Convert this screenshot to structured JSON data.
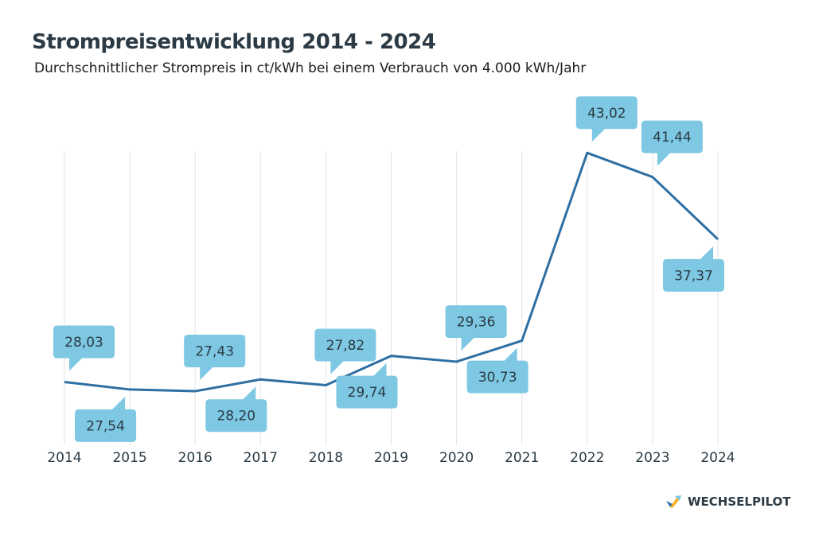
{
  "title": "Strompreisentwicklung 2014 - 2024",
  "subtitle": "Durchschnittlicher Strompreis in ct/kWh bei einem Verbrauch von 4.000 kWh/Jahr",
  "logo": {
    "text": "WECHSELPILOT"
  },
  "colors": {
    "line": "#2e6fa3",
    "label_bubble": "#7ec8e3",
    "text": "#2b3a44",
    "grid": "#e3e3e3"
  },
  "chart_data": {
    "type": "line",
    "title": "Strompreisentwicklung 2014 - 2024",
    "subtitle": "Durchschnittlicher Strompreis in ct/kWh bei einem Verbrauch von 4.000 kWh/Jahr",
    "categories": [
      "2014",
      "2015",
      "2016",
      "2017",
      "2018",
      "2019",
      "2020",
      "2021",
      "2022",
      "2023",
      "2024"
    ],
    "values": [
      28.03,
      27.54,
      27.43,
      28.2,
      27.82,
      29.74,
      29.36,
      30.73,
      43.02,
      41.44,
      37.37
    ],
    "labels": [
      "28,03",
      "27,54",
      "27,43",
      "28,20",
      "27,82",
      "29,74",
      "29,36",
      "30,73",
      "43,02",
      "41,44",
      "37,37"
    ],
    "label_position": [
      "above",
      "below",
      "above",
      "below",
      "above",
      "below",
      "above",
      "below",
      "above",
      "above",
      "below"
    ],
    "ylim": [
      24,
      46
    ],
    "grid": "vertical",
    "xlabel": "",
    "ylabel": ""
  }
}
